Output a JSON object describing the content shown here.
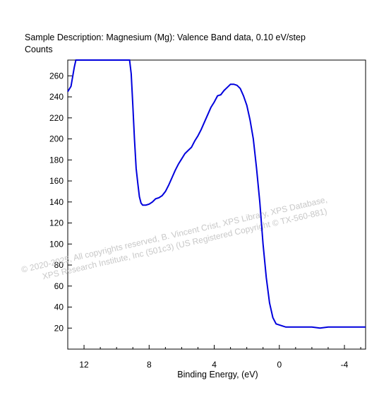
{
  "chart_data": {
    "type": "line",
    "title": "Sample Description:  Magnesium (Mg): Valence Band data, 0.10 eV/step",
    "ylabel": "Counts",
    "xlabel": "Binding Energy, (eV)",
    "x_reversed": true,
    "xlim": [
      13.0,
      -5.3
    ],
    "ylim": [
      0,
      275
    ],
    "xticks": [
      12,
      8,
      4,
      0,
      -4
    ],
    "yticks": [
      20,
      40,
      60,
      80,
      100,
      120,
      140,
      160,
      180,
      200,
      220,
      240,
      260
    ],
    "grid": false,
    "series": [
      {
        "color": "#0000dd",
        "x": [
          13.0,
          12.8,
          12.6,
          12.5,
          12.4,
          12.0,
          11.0,
          10.0,
          9.5,
          9.2,
          9.1,
          9.0,
          8.9,
          8.8,
          8.7,
          8.6,
          8.5,
          8.4,
          8.3,
          8.2,
          8.0,
          7.8,
          7.6,
          7.4,
          7.2,
          7.0,
          6.8,
          6.6,
          6.4,
          6.2,
          6.0,
          5.8,
          5.6,
          5.4,
          5.2,
          5.0,
          4.8,
          4.6,
          4.4,
          4.2,
          4.0,
          3.8,
          3.6,
          3.4,
          3.2,
          3.0,
          2.8,
          2.6,
          2.4,
          2.2,
          2.0,
          1.8,
          1.6,
          1.4,
          1.2,
          1.0,
          0.8,
          0.6,
          0.4,
          0.2,
          0.0,
          -0.2,
          -0.4,
          -0.6,
          -0.8,
          -1.0,
          -1.2,
          -1.4,
          -2.0,
          -2.5,
          -3.0,
          -3.5,
          -4.0,
          -4.5,
          -5.0,
          -5.3
        ],
        "values": [
          245,
          250,
          268,
          275,
          275,
          275,
          275,
          275,
          275,
          275,
          262,
          232,
          200,
          172,
          158,
          145,
          139,
          137,
          137,
          137,
          138,
          140,
          143,
          144,
          146,
          150,
          156,
          163,
          170,
          176,
          181,
          186,
          189,
          192,
          198,
          203,
          209,
          216,
          223,
          230,
          235,
          241,
          242,
          246,
          249,
          252,
          252,
          251,
          248,
          241,
          232,
          218,
          200,
          172,
          140,
          100,
          68,
          44,
          30,
          24,
          23,
          22,
          21,
          21,
          21,
          21,
          21,
          21,
          21,
          20,
          21,
          21,
          21,
          21,
          21,
          21
        ]
      }
    ],
    "watermark": [
      "©  2020-2025,  All copyrights reserved,   B. Vincent Crist,  XPS Library, XPS Database,",
      "XPS Research Institute, Inc (501c3)   (US Registered Copyright © TX-560-881)"
    ]
  }
}
